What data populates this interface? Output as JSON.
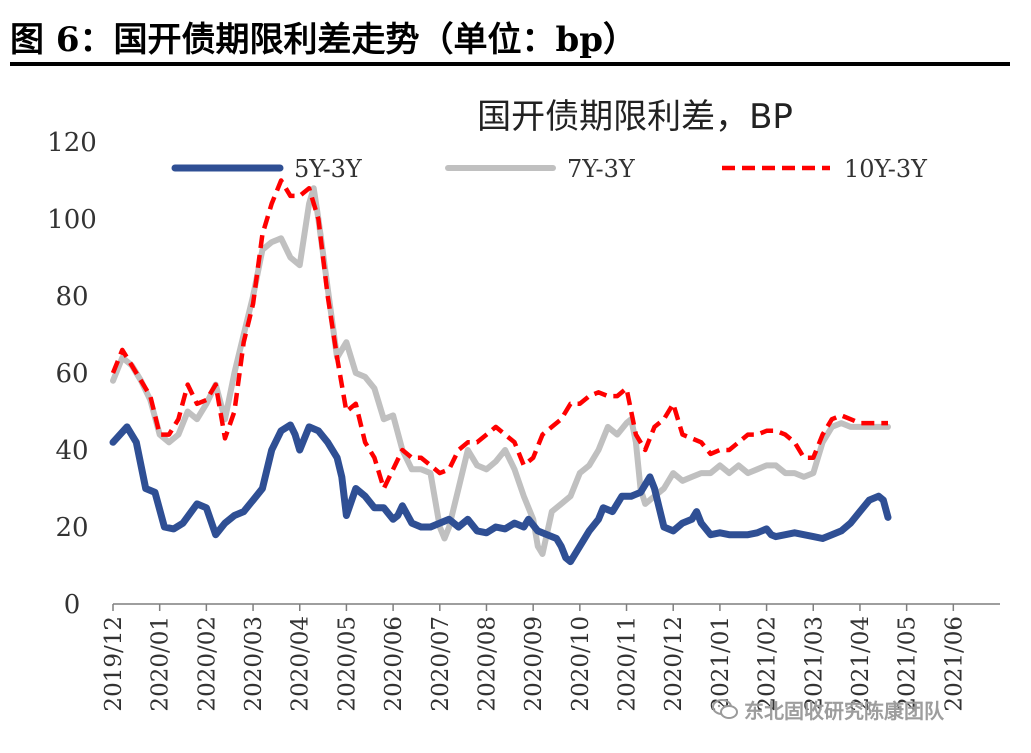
{
  "figure": {
    "caption": "图 6：国开债期限利差走势（单位：bp）"
  },
  "watermark": {
    "text": "东北固收研究陈康团队",
    "icon": "wechat-icon"
  },
  "colors": {
    "s1": "#2f4f94",
    "s2": "#c0c0c0",
    "s3": "#ff0000",
    "axis": "#7f7f7f",
    "text": "#333333"
  },
  "chart_data": {
    "type": "line",
    "title": "国开债期限利差，BP",
    "xlabel": "",
    "ylabel": "",
    "ylim": [
      0,
      120
    ],
    "yticks": [
      0,
      20,
      40,
      60,
      80,
      100,
      120
    ],
    "grid": false,
    "legend_position": "top",
    "x_count": 191,
    "xtick_labels": [
      {
        "index": 0,
        "label": "2019/12"
      },
      {
        "index": 10,
        "label": "2020/01"
      },
      {
        "index": 20,
        "label": "2020/02"
      },
      {
        "index": 30,
        "label": "2020/03"
      },
      {
        "index": 40,
        "label": "2020/04"
      },
      {
        "index": 50,
        "label": "2020/05"
      },
      {
        "index": 60,
        "label": "2020/06"
      },
      {
        "index": 70,
        "label": "2020/07"
      },
      {
        "index": 80,
        "label": "2020/08"
      },
      {
        "index": 90,
        "label": "2020/09"
      },
      {
        "index": 100,
        "label": "2020/10"
      },
      {
        "index": 110,
        "label": "2020/11"
      },
      {
        "index": 120,
        "label": "2020/12"
      },
      {
        "index": 130,
        "label": "2021/01"
      },
      {
        "index": 140,
        "label": "2021/02"
      },
      {
        "index": 150,
        "label": "2021/03"
      },
      {
        "index": 160,
        "label": "2021/04"
      },
      {
        "index": 170,
        "label": "2021/05"
      },
      {
        "index": 180,
        "label": "2021/06"
      }
    ],
    "series": [
      {
        "name": "5Y-3Y",
        "style": "solid-thick",
        "points": [
          [
            0,
            42
          ],
          [
            3,
            46
          ],
          [
            5,
            42
          ],
          [
            7,
            30
          ],
          [
            9,
            29
          ],
          [
            11,
            20
          ],
          [
            13,
            19.5
          ],
          [
            15,
            21
          ],
          [
            18,
            26
          ],
          [
            20,
            25
          ],
          [
            22,
            18
          ],
          [
            24,
            21
          ],
          [
            26,
            23
          ],
          [
            28,
            24
          ],
          [
            30,
            27
          ],
          [
            32,
            30
          ],
          [
            34,
            40
          ],
          [
            36,
            45
          ],
          [
            38,
            46.5
          ],
          [
            39,
            44
          ],
          [
            40,
            40
          ],
          [
            42,
            46
          ],
          [
            44,
            45
          ],
          [
            46,
            42
          ],
          [
            48,
            38
          ],
          [
            49,
            33
          ],
          [
            50,
            23
          ],
          [
            52,
            30
          ],
          [
            54,
            28
          ],
          [
            56,
            25
          ],
          [
            58,
            25
          ],
          [
            60,
            22
          ],
          [
            61,
            23
          ],
          [
            62,
            25.5
          ],
          [
            64,
            21
          ],
          [
            66,
            20
          ],
          [
            68,
            20
          ],
          [
            70,
            21
          ],
          [
            72,
            22
          ],
          [
            74,
            20
          ],
          [
            76,
            22
          ],
          [
            78,
            19
          ],
          [
            80,
            18.5
          ],
          [
            82,
            20
          ],
          [
            84,
            19.5
          ],
          [
            86,
            21
          ],
          [
            88,
            20
          ],
          [
            89,
            22
          ],
          [
            91,
            19
          ],
          [
            93,
            18
          ],
          [
            95,
            17
          ],
          [
            96,
            15
          ],
          [
            97,
            12
          ],
          [
            98,
            11
          ],
          [
            100,
            15
          ],
          [
            102,
            19
          ],
          [
            104,
            22
          ],
          [
            105,
            25
          ],
          [
            107,
            24
          ],
          [
            109,
            28
          ],
          [
            111,
            28
          ],
          [
            113,
            29
          ],
          [
            115,
            33
          ],
          [
            116,
            30
          ],
          [
            117,
            25
          ],
          [
            118,
            20
          ],
          [
            120,
            19
          ],
          [
            122,
            21
          ],
          [
            124,
            22
          ],
          [
            125,
            24
          ],
          [
            126,
            21
          ],
          [
            128,
            18
          ],
          [
            130,
            18.5
          ],
          [
            132,
            18
          ],
          [
            134,
            18
          ],
          [
            136,
            18
          ],
          [
            138,
            18.5
          ],
          [
            140,
            19.5
          ],
          [
            141,
            18
          ],
          [
            142,
            17.5
          ],
          [
            144,
            18
          ],
          [
            146,
            18.5
          ],
          [
            148,
            18
          ],
          [
            150,
            17.5
          ],
          [
            152,
            17
          ],
          [
            154,
            18
          ],
          [
            156,
            19
          ],
          [
            158,
            21
          ],
          [
            160,
            24
          ],
          [
            162,
            27
          ],
          [
            164,
            28
          ],
          [
            165,
            27
          ],
          [
            166,
            22.5
          ]
        ]
      },
      {
        "name": "7Y-3Y",
        "style": "solid",
        "points": [
          [
            0,
            58
          ],
          [
            2,
            64
          ],
          [
            4,
            62
          ],
          [
            6,
            58
          ],
          [
            8,
            53
          ],
          [
            10,
            44
          ],
          [
            12,
            42
          ],
          [
            14,
            44
          ],
          [
            16,
            50
          ],
          [
            18,
            48
          ],
          [
            20,
            52
          ],
          [
            22,
            57
          ],
          [
            24,
            48
          ],
          [
            26,
            60
          ],
          [
            28,
            70
          ],
          [
            30,
            80
          ],
          [
            32,
            92
          ],
          [
            34,
            94
          ],
          [
            36,
            95
          ],
          [
            38,
            90
          ],
          [
            40,
            88
          ],
          [
            42,
            104
          ],
          [
            43,
            108
          ],
          [
            44,
            100
          ],
          [
            46,
            82
          ],
          [
            48,
            64
          ],
          [
            50,
            68
          ],
          [
            52,
            60
          ],
          [
            54,
            59
          ],
          [
            56,
            56
          ],
          [
            58,
            48
          ],
          [
            60,
            49
          ],
          [
            62,
            40
          ],
          [
            64,
            35
          ],
          [
            66,
            35
          ],
          [
            68,
            34
          ],
          [
            70,
            20
          ],
          [
            71,
            17
          ],
          [
            72,
            20
          ],
          [
            74,
            30
          ],
          [
            76,
            40
          ],
          [
            78,
            36
          ],
          [
            80,
            35
          ],
          [
            82,
            37
          ],
          [
            84,
            40
          ],
          [
            86,
            35
          ],
          [
            88,
            28
          ],
          [
            90,
            22
          ],
          [
            91,
            15
          ],
          [
            92,
            13
          ],
          [
            94,
            24
          ],
          [
            96,
            26
          ],
          [
            98,
            28
          ],
          [
            100,
            34
          ],
          [
            102,
            36
          ],
          [
            104,
            40
          ],
          [
            106,
            46
          ],
          [
            108,
            44
          ],
          [
            110,
            47
          ],
          [
            111,
            48
          ],
          [
            112,
            42
          ],
          [
            113,
            30
          ],
          [
            114,
            26
          ],
          [
            116,
            28
          ],
          [
            118,
            30
          ],
          [
            120,
            34
          ],
          [
            122,
            32
          ],
          [
            124,
            33
          ],
          [
            126,
            34
          ],
          [
            128,
            34
          ],
          [
            130,
            36
          ],
          [
            132,
            34
          ],
          [
            134,
            36
          ],
          [
            136,
            34
          ],
          [
            138,
            35
          ],
          [
            140,
            36
          ],
          [
            142,
            36
          ],
          [
            144,
            34
          ],
          [
            146,
            34
          ],
          [
            148,
            33
          ],
          [
            150,
            34
          ],
          [
            152,
            42
          ],
          [
            154,
            46
          ],
          [
            156,
            47
          ],
          [
            158,
            46
          ],
          [
            160,
            46
          ],
          [
            166,
            46
          ]
        ]
      },
      {
        "name": "10Y-3Y",
        "style": "dashed",
        "points": [
          [
            0,
            60
          ],
          [
            2,
            66
          ],
          [
            4,
            62
          ],
          [
            6,
            58
          ],
          [
            8,
            54
          ],
          [
            10,
            44
          ],
          [
            12,
            44
          ],
          [
            14,
            48
          ],
          [
            16,
            57
          ],
          [
            18,
            52
          ],
          [
            20,
            53
          ],
          [
            22,
            57
          ],
          [
            24,
            43
          ],
          [
            26,
            50
          ],
          [
            28,
            68
          ],
          [
            30,
            78
          ],
          [
            32,
            96
          ],
          [
            34,
            104
          ],
          [
            36,
            110
          ],
          [
            38,
            106
          ],
          [
            40,
            106
          ],
          [
            42,
            108
          ],
          [
            44,
            100
          ],
          [
            46,
            80
          ],
          [
            48,
            64
          ],
          [
            50,
            50
          ],
          [
            52,
            52
          ],
          [
            54,
            42
          ],
          [
            56,
            38
          ],
          [
            58,
            30
          ],
          [
            60,
            35
          ],
          [
            62,
            40
          ],
          [
            64,
            38
          ],
          [
            66,
            38
          ],
          [
            68,
            36
          ],
          [
            70,
            34
          ],
          [
            72,
            35
          ],
          [
            74,
            40
          ],
          [
            76,
            42
          ],
          [
            78,
            42
          ],
          [
            80,
            44
          ],
          [
            82,
            46
          ],
          [
            84,
            44
          ],
          [
            86,
            42
          ],
          [
            88,
            36
          ],
          [
            90,
            38
          ],
          [
            92,
            44
          ],
          [
            94,
            46
          ],
          [
            96,
            48
          ],
          [
            98,
            52
          ],
          [
            100,
            52
          ],
          [
            102,
            54
          ],
          [
            104,
            55
          ],
          [
            106,
            54
          ],
          [
            108,
            54
          ],
          [
            110,
            56
          ],
          [
            112,
            44
          ],
          [
            114,
            40
          ],
          [
            116,
            46
          ],
          [
            118,
            48
          ],
          [
            120,
            52
          ],
          [
            122,
            44
          ],
          [
            124,
            43
          ],
          [
            126,
            42
          ],
          [
            128,
            39
          ],
          [
            130,
            40
          ],
          [
            132,
            40
          ],
          [
            134,
            42
          ],
          [
            136,
            44
          ],
          [
            138,
            44
          ],
          [
            140,
            45
          ],
          [
            142,
            45
          ],
          [
            144,
            44
          ],
          [
            146,
            42
          ],
          [
            148,
            38
          ],
          [
            150,
            38
          ],
          [
            152,
            44
          ],
          [
            154,
            48
          ],
          [
            156,
            49
          ],
          [
            158,
            48
          ],
          [
            160,
            47
          ],
          [
            166,
            47
          ]
        ]
      }
    ]
  }
}
